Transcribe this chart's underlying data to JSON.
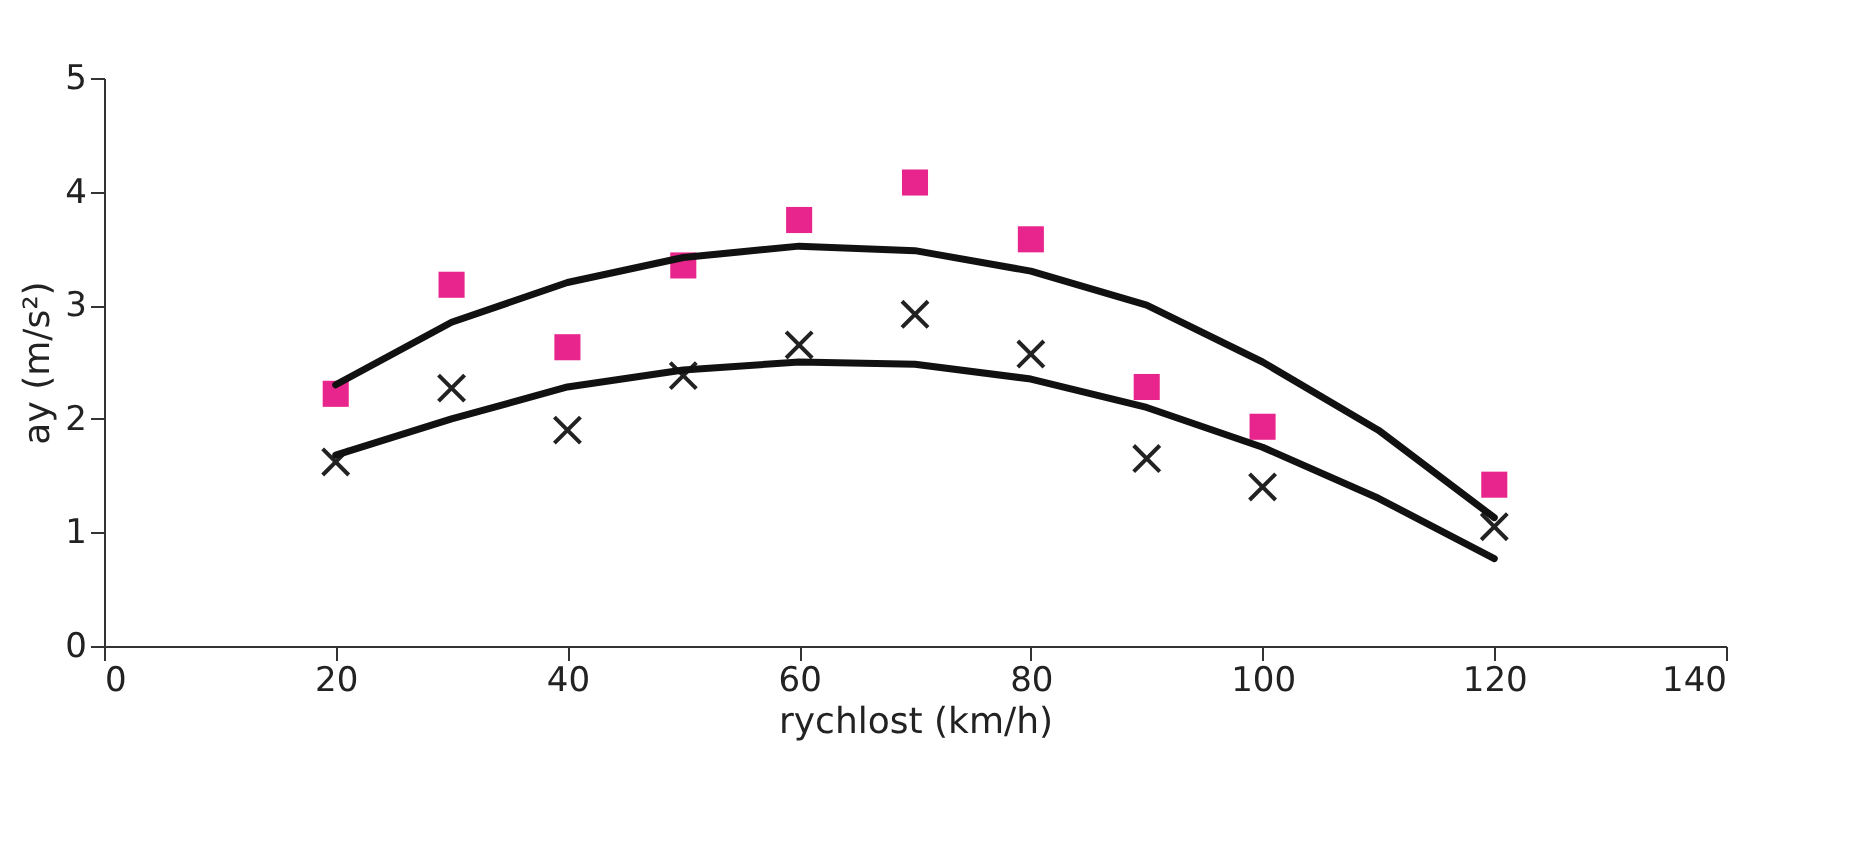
{
  "chart_data": {
    "type": "scatter",
    "xlabel": "rychlost (km/h)",
    "ylabel": "ay (m/s²)",
    "xlim": [
      0,
      140
    ],
    "xticks": [
      0,
      20,
      40,
      60,
      80,
      100,
      120,
      140
    ],
    "ylim": [
      0,
      5
    ],
    "yticks": [
      0,
      1,
      2,
      3,
      4,
      5
    ],
    "grid": false,
    "series": [
      {
        "marker": "square",
        "color": "#e8258c",
        "x": [
          20,
          30,
          40,
          50,
          60,
          70,
          80,
          90,
          100,
          120
        ],
        "values": [
          2.22,
          3.18,
          2.63,
          3.35,
          3.75,
          4.08,
          3.58,
          2.28,
          1.93,
          1.42
        ]
      },
      {
        "marker": "cross",
        "color": "#222222",
        "x": [
          20,
          30,
          40,
          50,
          60,
          70,
          80,
          90,
          100,
          120
        ],
        "values": [
          1.62,
          2.27,
          1.9,
          2.38,
          2.65,
          2.92,
          2.57,
          1.65,
          1.4,
          1.05
        ]
      },
      {
        "type": "line",
        "line_style": "solid",
        "color": "#111111",
        "x": [
          20,
          30,
          40,
          50,
          60,
          70,
          80,
          90,
          100,
          110,
          120
        ],
        "values": [
          2.3,
          2.85,
          3.2,
          3.42,
          3.52,
          3.48,
          3.3,
          3.0,
          2.5,
          1.9,
          1.13
        ]
      },
      {
        "type": "line",
        "line_style": "solid",
        "color": "#111111",
        "x": [
          20,
          30,
          40,
          50,
          60,
          70,
          80,
          90,
          100,
          110,
          120
        ],
        "values": [
          1.68,
          2.0,
          2.28,
          2.43,
          2.5,
          2.48,
          2.35,
          2.1,
          1.75,
          1.3,
          0.77
        ]
      }
    ]
  }
}
